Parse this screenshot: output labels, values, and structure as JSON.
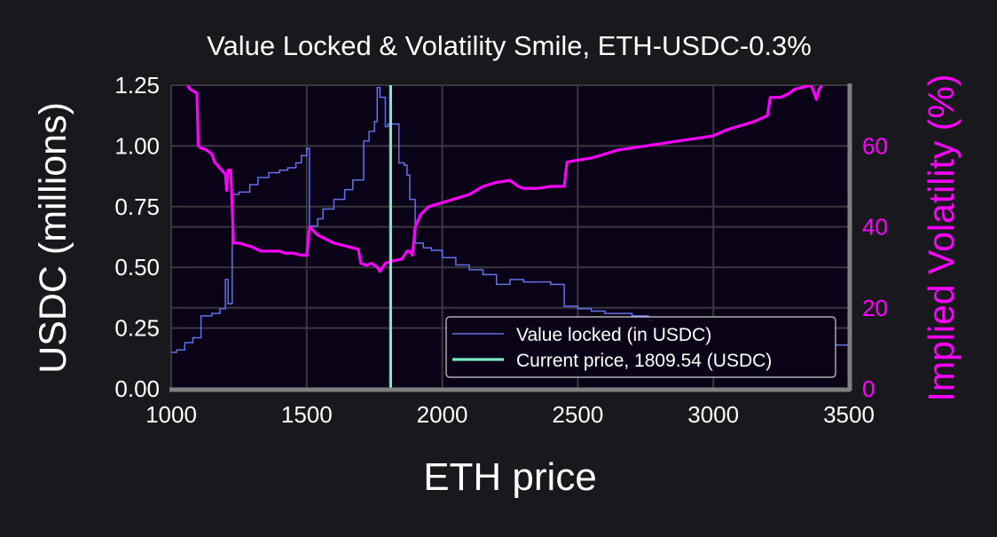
{
  "chart_data": {
    "type": "line",
    "title": "Value Locked & Volatility Smile, ETH-USDC-0.3%",
    "xlabel": "ETH price",
    "ylabel": "USDC (millions)",
    "y2label": "Implied Volatility (%)",
    "xlim": [
      1000,
      3500
    ],
    "ylim": [
      0,
      1.25
    ],
    "y2lim": [
      0,
      75
    ],
    "xticks": [
      "1000",
      "1500",
      "2000",
      "2500",
      "3000",
      "3500"
    ],
    "yticks": [
      "0.00",
      "0.25",
      "0.50",
      "0.75",
      "1.00",
      "1.25"
    ],
    "y2ticks": [
      "0",
      "20",
      "40",
      "60"
    ],
    "grid": true,
    "legend_position": "lower-right",
    "current_price": 1809.54,
    "colors": {
      "background": "#19181d",
      "plot_background": "#0a0217",
      "grid": "#3a373f",
      "value_locked": "#6470e6",
      "implied_volatility": "#ff00ff",
      "current_price": "#7fe5c0",
      "spine": "#7f7f7f",
      "text": "#ffffff"
    },
    "series": [
      {
        "name": "Value locked (in USDC)",
        "axis": "left",
        "style": "step",
        "points": [
          [
            1000,
            0.15
          ],
          [
            1020,
            0.16
          ],
          [
            1050,
            0.19
          ],
          [
            1080,
            0.21
          ],
          [
            1110,
            0.3
          ],
          [
            1150,
            0.31
          ],
          [
            1180,
            0.33
          ],
          [
            1200,
            0.45
          ],
          [
            1210,
            0.35
          ],
          [
            1225,
            0.8
          ],
          [
            1250,
            0.81
          ],
          [
            1290,
            0.84
          ],
          [
            1320,
            0.87
          ],
          [
            1360,
            0.89
          ],
          [
            1400,
            0.9
          ],
          [
            1430,
            0.91
          ],
          [
            1460,
            0.93
          ],
          [
            1480,
            0.96
          ],
          [
            1500,
            0.99
          ],
          [
            1510,
            0.67
          ],
          [
            1540,
            0.7
          ],
          [
            1560,
            0.74
          ],
          [
            1600,
            0.78
          ],
          [
            1640,
            0.82
          ],
          [
            1670,
            0.86
          ],
          [
            1700,
            0.86
          ],
          [
            1710,
            1.02
          ],
          [
            1730,
            1.06
          ],
          [
            1750,
            1.1
          ],
          [
            1760,
            1.24
          ],
          [
            1770,
            1.2
          ],
          [
            1790,
            1.08
          ],
          [
            1800,
            1.09
          ],
          [
            1830,
            1.09
          ],
          [
            1840,
            0.93
          ],
          [
            1860,
            0.92
          ],
          [
            1870,
            0.88
          ],
          [
            1880,
            0.78
          ],
          [
            1900,
            0.6
          ],
          [
            1930,
            0.58
          ],
          [
            1960,
            0.57
          ],
          [
            2000,
            0.54
          ],
          [
            2050,
            0.51
          ],
          [
            2100,
            0.49
          ],
          [
            2150,
            0.47
          ],
          [
            2200,
            0.43
          ],
          [
            2250,
            0.45
          ],
          [
            2300,
            0.44
          ],
          [
            2400,
            0.43
          ],
          [
            2450,
            0.34
          ],
          [
            2500,
            0.33
          ],
          [
            2550,
            0.32
          ],
          [
            2600,
            0.31
          ],
          [
            2700,
            0.3
          ],
          [
            2760,
            0.28
          ]
        ]
      },
      {
        "name": "Implied Volatility",
        "axis": "right",
        "style": "line",
        "points": [
          [
            1060,
            75
          ],
          [
            1070,
            74
          ],
          [
            1095,
            73
          ],
          [
            1100,
            60
          ],
          [
            1110,
            59.5
          ],
          [
            1130,
            59
          ],
          [
            1150,
            58
          ],
          [
            1160,
            56
          ],
          [
            1200,
            53
          ],
          [
            1205,
            49
          ],
          [
            1210,
            54
          ],
          [
            1220,
            54
          ],
          [
            1230,
            36
          ],
          [
            1250,
            36
          ],
          [
            1300,
            35
          ],
          [
            1330,
            34
          ],
          [
            1360,
            34
          ],
          [
            1400,
            34
          ],
          [
            1420,
            33.5
          ],
          [
            1450,
            33.5
          ],
          [
            1480,
            33
          ],
          [
            1500,
            33
          ],
          [
            1510,
            40
          ],
          [
            1540,
            38
          ],
          [
            1570,
            37
          ],
          [
            1600,
            36
          ],
          [
            1630,
            35.5
          ],
          [
            1660,
            35
          ],
          [
            1690,
            34.5
          ],
          [
            1700,
            31
          ],
          [
            1720,
            30.5
          ],
          [
            1740,
            31
          ],
          [
            1760,
            30
          ],
          [
            1770,
            29
          ],
          [
            1790,
            31
          ],
          [
            1810,
            31.5
          ],
          [
            1850,
            32
          ],
          [
            1870,
            34
          ],
          [
            1880,
            34
          ],
          [
            1890,
            33
          ],
          [
            1900,
            40
          ],
          [
            1920,
            43
          ],
          [
            1950,
            45
          ],
          [
            2000,
            46
          ],
          [
            2050,
            47
          ],
          [
            2100,
            48
          ],
          [
            2150,
            50
          ],
          [
            2200,
            51
          ],
          [
            2250,
            51.5
          ],
          [
            2280,
            50
          ],
          [
            2300,
            49.5
          ],
          [
            2350,
            49.5
          ],
          [
            2400,
            50
          ],
          [
            2450,
            50
          ],
          [
            2460,
            56
          ],
          [
            2500,
            56.5
          ],
          [
            2550,
            57
          ],
          [
            2600,
            58
          ],
          [
            2650,
            59
          ],
          [
            2700,
            59.5
          ],
          [
            2750,
            60
          ],
          [
            2800,
            60.5
          ],
          [
            2850,
            61
          ],
          [
            2900,
            61.5
          ],
          [
            2950,
            62
          ],
          [
            3000,
            62.5
          ],
          [
            3050,
            64
          ],
          [
            3100,
            65
          ],
          [
            3150,
            66
          ],
          [
            3200,
            67.5
          ],
          [
            3210,
            72
          ],
          [
            3250,
            72
          ],
          [
            3280,
            73
          ],
          [
            3300,
            74
          ],
          [
            3330,
            74.5
          ],
          [
            3360,
            75
          ],
          [
            3370,
            73.5
          ],
          [
            3380,
            71.5
          ],
          [
            3390,
            74
          ],
          [
            3400,
            75
          ]
        ]
      },
      {
        "name": "Current price, 1809.54 (USDC)",
        "axis": "left",
        "style": "vline",
        "x": 1809.54
      }
    ]
  }
}
